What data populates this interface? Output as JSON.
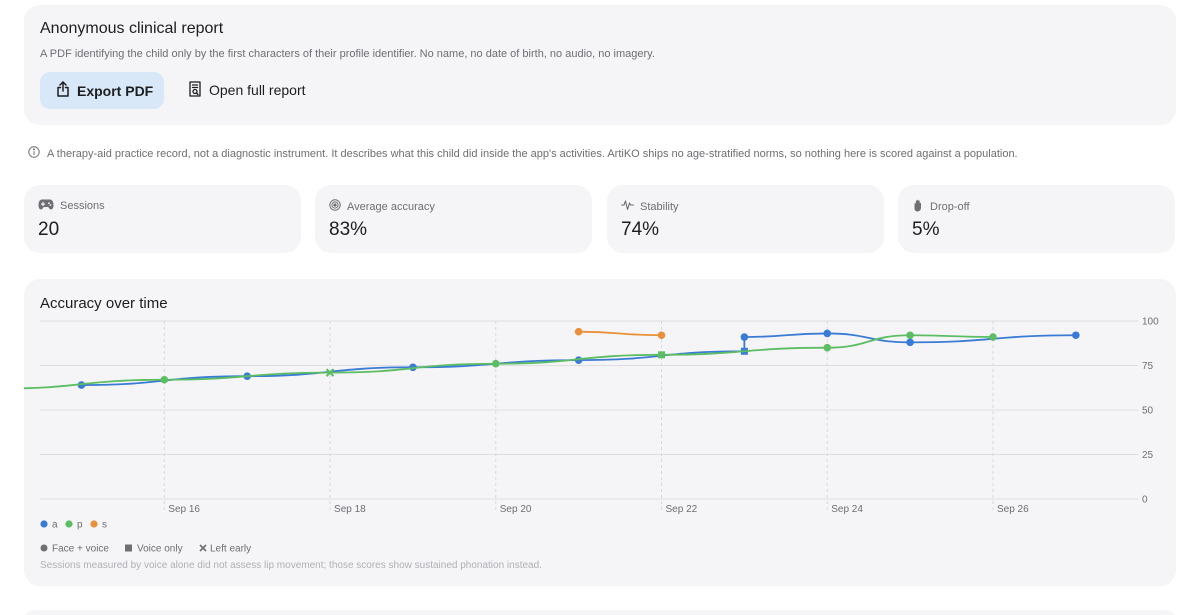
{
  "report": {
    "title": "Anonymous clinical report",
    "description": "A PDF identifying the child only by the first characters of their profile identifier. No name, no date of birth, no audio, no imagery.",
    "export_label": "Export PDF",
    "export_icon": "share-icon",
    "open_label": "Open full report",
    "open_icon": "document-search-icon"
  },
  "disclaimer": {
    "icon": "info-icon",
    "text": "A therapy-aid practice record, not a diagnostic instrument. It describes what this child did inside the app's activities. ArtiKO ships no age-stratified norms, so nothing here is scored against a population."
  },
  "stats": [
    {
      "label": "Sessions",
      "value": "20",
      "icon": "gamepad-icon"
    },
    {
      "label": "Average accuracy",
      "value": "83%",
      "icon": "target-icon"
    },
    {
      "label": "Stability",
      "value": "74%",
      "icon": "waveform-icon"
    },
    {
      "label": "Drop-off",
      "value": "5%",
      "icon": "hand-icon"
    }
  ],
  "chart": {
    "title": "Accuracy over time",
    "legend_modes": [
      "Face + voice",
      "Voice only",
      "Left early"
    ],
    "note": "Sessions measured by voice alone did not assess lip movement; those scores show sustained phonation instead."
  },
  "chart_data": {
    "type": "line",
    "x_ticks": [
      "Sep 16",
      "Sep 18",
      "Sep 20",
      "Sep 22",
      "Sep 24",
      "Sep 26"
    ],
    "y_ticks": [
      "100",
      "75",
      "50",
      "25",
      "0"
    ],
    "ylim": [
      0,
      100
    ],
    "xlim": [
      "Sep 14 12:00",
      "Sep 27 18:00"
    ],
    "grid": true,
    "legend_position": "bottom-left",
    "series": [
      {
        "name": "a",
        "color": "#3a7bd5",
        "points": [
          {
            "x": "Sep 15",
            "y": 64,
            "mode": "face"
          },
          {
            "x": "Sep 17",
            "y": 69,
            "mode": "face"
          },
          {
            "x": "Sep 19",
            "y": 74,
            "mode": "face"
          },
          {
            "x": "Sep 21",
            "y": 78,
            "mode": "face"
          },
          {
            "x": "Sep 23",
            "y": 83,
            "mode": "voice"
          },
          {
            "x": "Sep 23",
            "y": 91,
            "mode": "face"
          },
          {
            "x": "Sep 24",
            "y": 93,
            "mode": "face"
          },
          {
            "x": "Sep 25",
            "y": 88,
            "mode": "face"
          },
          {
            "x": "Sep 27",
            "y": 92,
            "mode": "face"
          }
        ]
      },
      {
        "name": "p",
        "color": "#5cbd62",
        "points": [
          {
            "x": "Sep 14",
            "y": 62,
            "mode": "face"
          },
          {
            "x": "Sep 16",
            "y": 67,
            "mode": "face"
          },
          {
            "x": "Sep 18",
            "y": 71,
            "mode": "left"
          },
          {
            "x": "Sep 20",
            "y": 76,
            "mode": "face"
          },
          {
            "x": "Sep 22",
            "y": 81,
            "mode": "voice"
          },
          {
            "x": "Sep 24",
            "y": 85,
            "mode": "face"
          },
          {
            "x": "Sep 25",
            "y": 92,
            "mode": "face"
          },
          {
            "x": "Sep 26",
            "y": 91,
            "mode": "face"
          }
        ]
      },
      {
        "name": "s",
        "color": "#e8913a",
        "points": [
          {
            "x": "Sep 21",
            "y": 94,
            "mode": "face"
          },
          {
            "x": "Sep 22",
            "y": 92,
            "mode": "face"
          }
        ]
      }
    ]
  }
}
